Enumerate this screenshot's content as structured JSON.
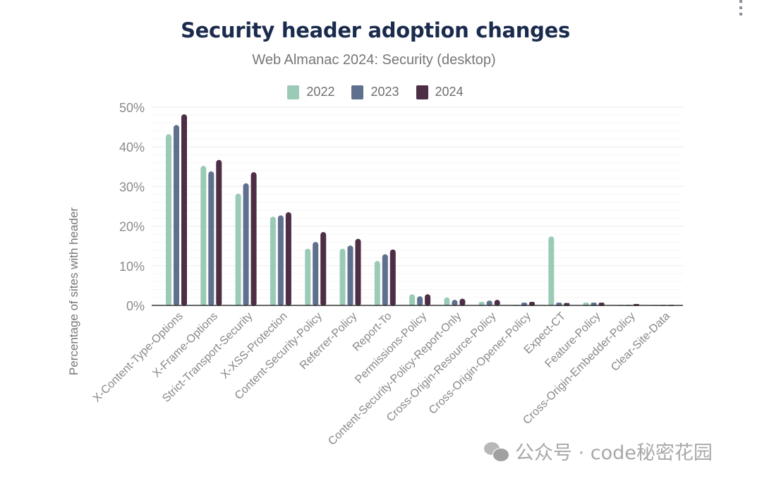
{
  "menu": {
    "icon": "more-vertical-icon"
  },
  "watermark": {
    "icon": "wechat-icon",
    "text": "公众号 · code秘密花园"
  },
  "chart_data": {
    "type": "bar",
    "title": "Security header adoption changes",
    "subtitle": "Web Almanac 2024: Security (desktop)",
    "xlabel": "",
    "ylabel": "Percentage of sites with header",
    "ylim": [
      0,
      50
    ],
    "yticks": [
      "0%",
      "10%",
      "20%",
      "30%",
      "40%",
      "50%"
    ],
    "ytick_values": [
      0,
      10,
      20,
      30,
      40,
      50
    ],
    "grid": true,
    "legend_position": "top-center",
    "categories": [
      "X-Content-Type-Options",
      "X-Frame-Options",
      "Strict-Transport-Security",
      "X-XSS-Protection",
      "Content-Security-Policy",
      "Referrer-Policy",
      "Report-To",
      "Permissions-Policy",
      "Content-Security-Policy-Report-Only",
      "Cross-Origin-Resource-Policy",
      "Cross-Origin-Opener-Policy",
      "Expect-CT",
      "Feature-Policy",
      "Cross-Origin-Embedder-Policy",
      "Clear-Site-Data"
    ],
    "series": [
      {
        "name": "2022",
        "color": "#9bcbb7",
        "values": [
          43.2,
          35.2,
          28.2,
          22.4,
          14.3,
          14.3,
          11.2,
          2.8,
          2.0,
          0.9,
          0.1,
          17.4,
          0.7,
          0.1,
          0.1
        ]
      },
      {
        "name": "2023",
        "color": "#5f708e",
        "values": [
          45.5,
          33.8,
          30.8,
          22.7,
          16.0,
          15.1,
          12.9,
          2.3,
          1.4,
          1.2,
          0.7,
          0.7,
          0.7,
          0.1,
          0.1
        ]
      },
      {
        "name": "2024",
        "color": "#4d2e45",
        "values": [
          48.2,
          36.7,
          33.6,
          23.5,
          18.5,
          16.8,
          14.1,
          2.8,
          1.7,
          1.4,
          0.9,
          0.6,
          0.7,
          0.35,
          0.05
        ]
      }
    ]
  }
}
